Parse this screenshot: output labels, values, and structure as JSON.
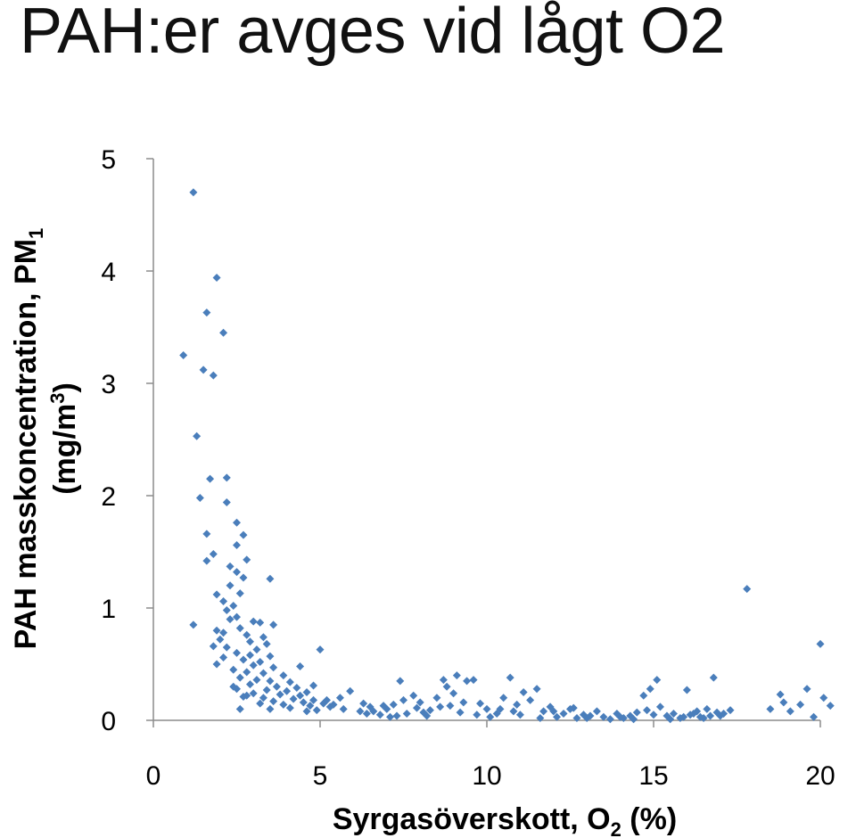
{
  "slide": {
    "title": "PAH:er avges vid lågt O2"
  },
  "chart_data": {
    "type": "scatter",
    "title": "",
    "xlabel": {
      "main": "Syrgasöverskott, O",
      "sub": "2",
      "tail": " (%)"
    },
    "ylabel": {
      "line1_main": "PAH masskoncentration, PM",
      "line1_sub": "1",
      "line2_main": "(mg/m",
      "line2_sup": "3",
      "line2_tail": ")"
    },
    "xlim": [
      0,
      20
    ],
    "ylim": [
      0,
      5
    ],
    "x_ticks": [
      "0",
      "5",
      "10",
      "15",
      "20"
    ],
    "y_ticks": [
      "0",
      "1",
      "2",
      "3",
      "4",
      "5"
    ],
    "grid": false,
    "legend": "none",
    "marker_color": "#4a7ebb",
    "points": [
      [
        1.2,
        4.7
      ],
      [
        1.9,
        3.94
      ],
      [
        1.6,
        3.63
      ],
      [
        2.1,
        3.45
      ],
      [
        0.9,
        3.25
      ],
      [
        1.5,
        3.12
      ],
      [
        1.8,
        3.07
      ],
      [
        1.3,
        2.53
      ],
      [
        1.7,
        2.15
      ],
      [
        2.2,
        2.16
      ],
      [
        1.4,
        1.98
      ],
      [
        2.2,
        1.94
      ],
      [
        2.5,
        1.76
      ],
      [
        1.6,
        1.66
      ],
      [
        2.7,
        1.65
      ],
      [
        2.5,
        1.56
      ],
      [
        1.8,
        1.48
      ],
      [
        2.8,
        1.43
      ],
      [
        1.6,
        1.42
      ],
      [
        2.3,
        1.37
      ],
      [
        2.5,
        1.32
      ],
      [
        2.7,
        1.27
      ],
      [
        3.5,
        1.26
      ],
      [
        2.3,
        1.2
      ],
      [
        2.6,
        1.13
      ],
      [
        1.9,
        1.12
      ],
      [
        2.1,
        1.06
      ],
      [
        2.4,
        1.02
      ],
      [
        2.2,
        0.98
      ],
      [
        2.5,
        0.92
      ],
      [
        2.3,
        0.9
      ],
      [
        3.0,
        0.88
      ],
      [
        3.2,
        0.87
      ],
      [
        3.6,
        0.85
      ],
      [
        1.2,
        0.85
      ],
      [
        2.6,
        0.82
      ],
      [
        1.9,
        0.8
      ],
      [
        2.1,
        0.78
      ],
      [
        2.8,
        0.76
      ],
      [
        3.3,
        0.74
      ],
      [
        2.0,
        0.72
      ],
      [
        2.9,
        0.7
      ],
      [
        3.4,
        0.68
      ],
      [
        1.8,
        0.66
      ],
      [
        2.2,
        0.65
      ],
      [
        3.1,
        0.63
      ],
      [
        2.5,
        0.6
      ],
      [
        2.9,
        0.58
      ],
      [
        3.5,
        0.57
      ],
      [
        2.1,
        0.56
      ],
      [
        2.7,
        0.54
      ],
      [
        3.2,
        0.52
      ],
      [
        1.9,
        0.5
      ],
      [
        3.0,
        0.49
      ],
      [
        3.6,
        0.47
      ],
      [
        2.4,
        0.45
      ],
      [
        2.8,
        0.43
      ],
      [
        3.3,
        0.42
      ],
      [
        3.9,
        0.4
      ],
      [
        2.6,
        0.38
      ],
      [
        3.1,
        0.36
      ],
      [
        3.5,
        0.35
      ],
      [
        4.1,
        0.34
      ],
      [
        2.9,
        0.32
      ],
      [
        3.7,
        0.3
      ],
      [
        4.3,
        0.29
      ],
      [
        2.5,
        0.28
      ],
      [
        3.4,
        0.27
      ],
      [
        4.0,
        0.26
      ],
      [
        4.6,
        0.25
      ],
      [
        3.0,
        0.24
      ],
      [
        3.8,
        0.23
      ],
      [
        4.4,
        0.22
      ],
      [
        2.7,
        0.21
      ],
      [
        3.3,
        0.2
      ],
      [
        4.2,
        0.19
      ],
      [
        4.8,
        0.18
      ],
      [
        3.6,
        0.17
      ],
      [
        4.5,
        0.16
      ],
      [
        5.1,
        0.15
      ],
      [
        3.9,
        0.14
      ],
      [
        4.7,
        0.13
      ],
      [
        5.3,
        0.12
      ],
      [
        4.1,
        0.11
      ],
      [
        3.5,
        0.1
      ],
      [
        2.6,
        0.1
      ],
      [
        4.9,
        0.09
      ],
      [
        3.2,
        0.15
      ],
      [
        2.8,
        0.22
      ],
      [
        2.4,
        0.3
      ],
      [
        5.6,
        0.2
      ],
      [
        5.9,
        0.26
      ],
      [
        5.2,
        0.18
      ],
      [
        5.0,
        0.63
      ],
      [
        4.4,
        0.48
      ],
      [
        4.8,
        0.31
      ],
      [
        6.3,
        0.15
      ],
      [
        6.5,
        0.12
      ],
      [
        6.6,
        0.08
      ],
      [
        6.8,
        0.05
      ],
      [
        7.0,
        0.1
      ],
      [
        7.2,
        0.14
      ],
      [
        7.4,
        0.35
      ],
      [
        7.5,
        0.18
      ],
      [
        7.6,
        0.06
      ],
      [
        7.8,
        0.22
      ],
      [
        7.9,
        0.11
      ],
      [
        8.0,
        0.16
      ],
      [
        8.2,
        0.04
      ],
      [
        8.3,
        0.09
      ],
      [
        8.5,
        0.2
      ],
      [
        8.7,
        0.36
      ],
      [
        8.8,
        0.3
      ],
      [
        8.9,
        0.13
      ],
      [
        9.0,
        0.24
      ],
      [
        9.1,
        0.4
      ],
      [
        9.2,
        0.07
      ],
      [
        9.4,
        0.35
      ],
      [
        9.6,
        0.36
      ],
      [
        9.8,
        0.15
      ],
      [
        10.0,
        0.1
      ],
      [
        10.3,
        0.06
      ],
      [
        10.5,
        0.2
      ],
      [
        10.7,
        0.38
      ],
      [
        10.9,
        0.14
      ],
      [
        11.0,
        0.05
      ],
      [
        11.1,
        0.25
      ],
      [
        11.3,
        0.18
      ],
      [
        11.5,
        0.28
      ],
      [
        11.7,
        0.08
      ],
      [
        11.9,
        0.12
      ],
      [
        12.1,
        0.03
      ],
      [
        12.3,
        0.06
      ],
      [
        12.5,
        0.1
      ],
      [
        12.7,
        0.02
      ],
      [
        12.9,
        0.05
      ],
      [
        13.1,
        0.04
      ],
      [
        13.3,
        0.08
      ],
      [
        13.5,
        0.03
      ],
      [
        13.7,
        0.01
      ],
      [
        13.9,
        0.06
      ],
      [
        14.1,
        0.02
      ],
      [
        14.3,
        0.04
      ],
      [
        14.5,
        0.07
      ],
      [
        14.7,
        0.22
      ],
      [
        14.8,
        0.09
      ],
      [
        14.9,
        0.28
      ],
      [
        15.1,
        0.36
      ],
      [
        15.2,
        0.12
      ],
      [
        15.4,
        0.04
      ],
      [
        15.6,
        0.06
      ],
      [
        15.8,
        0.02
      ],
      [
        16.0,
        0.27
      ],
      [
        16.1,
        0.05
      ],
      [
        16.3,
        0.08
      ],
      [
        16.4,
        0.03
      ],
      [
        16.6,
        0.1
      ],
      [
        16.7,
        0.04
      ],
      [
        16.8,
        0.38
      ],
      [
        16.9,
        0.07
      ],
      [
        17.1,
        0.06
      ],
      [
        17.3,
        0.09
      ],
      [
        17.8,
        1.17
      ],
      [
        18.5,
        0.1
      ],
      [
        18.8,
        0.23
      ],
      [
        18.9,
        0.16
      ],
      [
        19.1,
        0.08
      ],
      [
        19.4,
        0.14
      ],
      [
        19.6,
        0.28
      ],
      [
        19.8,
        0.03
      ],
      [
        20.0,
        0.68
      ],
      [
        20.1,
        0.2
      ],
      [
        20.3,
        0.13
      ],
      [
        6.2,
        0.08
      ],
      [
        6.9,
        0.13
      ],
      [
        7.3,
        0.04
      ],
      [
        8.1,
        0.07
      ],
      [
        9.3,
        0.16
      ],
      [
        10.1,
        0.03
      ],
      [
        10.4,
        0.1
      ],
      [
        12.0,
        0.08
      ],
      [
        12.6,
        0.11
      ],
      [
        13.0,
        0.02
      ],
      [
        14.0,
        0.03
      ],
      [
        14.4,
        0.01
      ],
      [
        15.0,
        0.05
      ],
      [
        15.5,
        0.01
      ],
      [
        15.9,
        0.03
      ],
      [
        16.2,
        0.06
      ],
      [
        16.5,
        0.02
      ],
      [
        17.0,
        0.04
      ],
      [
        11.6,
        0.02
      ],
      [
        10.8,
        0.08
      ],
      [
        9.7,
        0.05
      ],
      [
        8.6,
        0.12
      ],
      [
        7.1,
        0.03
      ],
      [
        6.4,
        0.06
      ],
      [
        5.7,
        0.1
      ],
      [
        5.4,
        0.14
      ],
      [
        4.6,
        0.08
      ]
    ]
  }
}
